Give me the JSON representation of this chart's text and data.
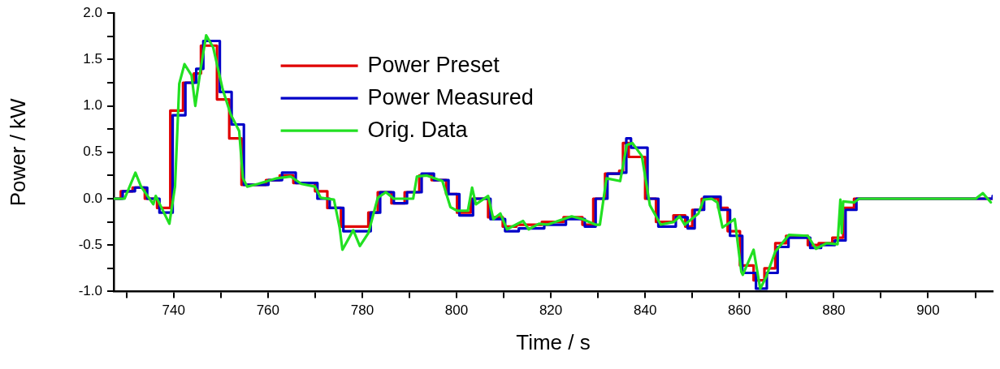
{
  "chart_data": {
    "type": "line",
    "xlabel": "Time / s",
    "ylabel": "Power / kW",
    "xlim": [
      727.3,
      913.7
    ],
    "ylim": [
      -1,
      2
    ],
    "xticks": [
      {
        "value": 730,
        "label": null
      },
      740,
      {
        "value": 750,
        "label": null
      },
      760,
      {
        "value": 770,
        "label": null
      },
      780,
      {
        "value": 790,
        "label": null
      },
      800,
      {
        "value": 810,
        "label": null
      },
      820,
      {
        "value": 830,
        "label": null
      },
      840,
      {
        "value": 850,
        "label": null
      },
      860,
      {
        "value": 870,
        "label": null
      },
      880,
      {
        "value": 890,
        "label": null
      },
      900,
      {
        "value": 910,
        "label": null
      }
    ],
    "yticks": [
      {
        "value": -1,
        "label": "-1.0"
      },
      {
        "value": -0.75,
        "label": null
      },
      -0.5,
      {
        "value": -0.25,
        "label": null
      },
      {
        "value": 0,
        "label": "0.0"
      },
      {
        "value": 0.25,
        "label": null
      },
      0.5,
      {
        "value": 0.75,
        "label": null
      },
      {
        "value": 1,
        "label": "1.0"
      },
      {
        "value": 1.25,
        "label": null
      },
      1.5,
      {
        "value": 1.75,
        "label": null
      },
      {
        "value": 2,
        "label": "2.0"
      }
    ],
    "grid": false,
    "legend": "top left",
    "line_style": "solid",
    "marker": "none",
    "series": [
      {
        "name": "Power Preset",
        "type": "step",
        "color": "#e00000",
        "x": [
          727.3,
          728.8,
          731.3,
          733.9,
          736.5,
          739.3,
          742.0,
          744.3,
          745.8,
          749.2,
          751.8,
          754.4,
          759.6,
          762.5,
          765.4,
          770.0,
          772.6,
          775.5,
          781.3,
          783.3,
          786.2,
          789.0,
          792.1,
          794.7,
          797.8,
          800.1,
          803.0,
          806.7,
          809.8,
          812.7,
          818.1,
          822.7,
          826.7,
          829.0,
          831.5,
          834.5,
          835.3,
          836.5,
          840.0,
          842.3,
          846.0,
          848.5,
          850.0,
          852.0,
          855.5,
          857.5,
          860.1,
          863.0,
          865.3,
          867.6,
          869.9,
          874.5,
          876.8,
          879.7,
          882.0,
          884.3,
          913.7
        ],
        "values": [
          0,
          0.08,
          0.12,
          0,
          -0.1,
          0.95,
          1.25,
          1.35,
          1.65,
          1.07,
          0.65,
          0.15,
          0.2,
          0.25,
          0.17,
          0.08,
          -0.1,
          -0.3,
          -0.15,
          0.07,
          -0.05,
          0.07,
          0.25,
          0.2,
          0.05,
          -0.15,
          0,
          -0.2,
          -0.3,
          -0.28,
          -0.25,
          -0.2,
          -0.28,
          0,
          0.27,
          0.3,
          0.6,
          0.45,
          0,
          -0.25,
          -0.18,
          -0.3,
          -0.12,
          0,
          -0.1,
          -0.35,
          -0.72,
          -0.88,
          -0.75,
          -0.48,
          -0.4,
          -0.5,
          -0.48,
          -0.42,
          -0.1,
          0,
          0
        ]
      },
      {
        "name": "Power Measured",
        "type": "step",
        "color": "#0000c8",
        "x": [
          727.3,
          729.2,
          731.8,
          734.4,
          737.0,
          739.8,
          742.5,
          744.8,
          746.3,
          749.8,
          752.3,
          754.9,
          760.1,
          763.0,
          765.9,
          770.5,
          773.1,
          776.0,
          781.8,
          783.8,
          786.7,
          789.5,
          792.6,
          795.2,
          798.3,
          800.6,
          803.5,
          807.2,
          810.3,
          813.2,
          818.6,
          823.2,
          827.2,
          829.5,
          832.0,
          835.0,
          836.0,
          837.0,
          840.5,
          842.8,
          846.5,
          849.0,
          850.5,
          852.5,
          856.0,
          858.0,
          860.6,
          863.5,
          865.8,
          868.1,
          870.4,
          875.0,
          877.3,
          880.2,
          882.5,
          884.8,
          913.7
        ],
        "values": [
          0,
          0.08,
          0.12,
          0,
          -0.15,
          0.9,
          1.25,
          1.4,
          1.7,
          1.15,
          0.8,
          0.15,
          0.2,
          0.28,
          0.17,
          0.0,
          -0.1,
          -0.35,
          -0.15,
          0.07,
          -0.05,
          0.07,
          0.27,
          0.2,
          0.05,
          -0.18,
          0,
          -0.22,
          -0.35,
          -0.32,
          -0.28,
          -0.22,
          -0.3,
          0,
          0.27,
          0.28,
          0.65,
          0.55,
          0,
          -0.3,
          -0.2,
          -0.32,
          -0.12,
          0.02,
          -0.12,
          -0.4,
          -0.8,
          -0.97,
          -0.8,
          -0.52,
          -0.42,
          -0.53,
          -0.5,
          -0.45,
          -0.12,
          0,
          0.03
        ]
      },
      {
        "name": "Orig. Data",
        "type": "line",
        "color": "#22e022",
        "x": [
          727.3,
          729.6,
          731.9,
          733.1,
          735.7,
          736.2,
          739.1,
          740.3,
          741.2,
          742.3,
          743.8,
          744.6,
          745.8,
          746.9,
          748.4,
          750.4,
          752.1,
          753.9,
          754.7,
          755.6,
          757.9,
          761.9,
          764.8,
          767.1,
          770.0,
          771.2,
          774.0,
          775.2,
          775.8,
          778.1,
          779.5,
          781.3,
          783.3,
          785.0,
          786.7,
          790.8,
          791.6,
          793.7,
          797.0,
          798.7,
          800.1,
          802.4,
          803.3,
          804.1,
          806.7,
          807.8,
          809.3,
          810.7,
          814.1,
          815.3,
          817.5,
          819.3,
          821.5,
          824.4,
          826.7,
          829.5,
          830.4,
          831.8,
          834.7,
          836.1,
          837.3,
          839.3,
          841.0,
          843.3,
          846.1,
          847.3,
          848.4,
          851.3,
          852.4,
          854.1,
          855.3,
          856.4,
          859.0,
          860.4,
          860.7,
          863.0,
          864.4,
          865.6,
          867.6,
          870.5,
          874.5,
          876.2,
          878.5,
          880.8,
          881.4,
          881.7,
          882.0,
          884.3,
          885.4,
          890.0,
          910.1,
          911.6,
          913.3
        ],
        "values": [
          0,
          0,
          0.28,
          0.13,
          -0.06,
          0.03,
          -0.27,
          0.13,
          1.24,
          1.45,
          1.33,
          1.0,
          1.42,
          1.76,
          1.63,
          1.18,
          0.91,
          0.73,
          0.22,
          0.13,
          0.16,
          0.22,
          0.24,
          0.16,
          0.13,
          0.01,
          -0.01,
          -0.31,
          -0.55,
          -0.34,
          -0.51,
          -0.37,
          0.01,
          0.07,
          0,
          0,
          0.24,
          0.25,
          0.19,
          -0.09,
          -0.13,
          -0.13,
          0.12,
          -0.06,
          0.03,
          -0.22,
          -0.16,
          -0.33,
          -0.24,
          -0.33,
          -0.27,
          -0.28,
          -0.24,
          -0.19,
          -0.22,
          -0.28,
          -0.28,
          0.22,
          0.19,
          0.58,
          0.6,
          0.46,
          -0.07,
          -0.28,
          -0.25,
          -0.19,
          -0.28,
          -0.16,
          -0.01,
          0,
          -0.04,
          -0.31,
          -0.22,
          -0.79,
          -0.82,
          -0.55,
          -0.97,
          -0.85,
          -0.57,
          -0.39,
          -0.4,
          -0.54,
          -0.48,
          -0.49,
          -0.01,
          -0.37,
          -0.03,
          -0.04,
          0,
          0,
          0,
          0.06,
          -0.04
        ]
      }
    ]
  }
}
